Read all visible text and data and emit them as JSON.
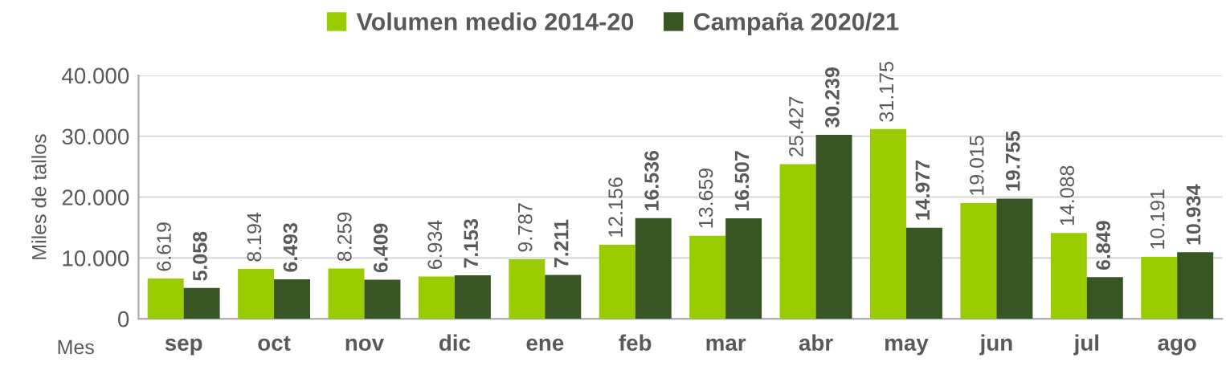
{
  "chart_data": {
    "type": "bar",
    "xlabel": "Mes",
    "ylabel": "Miles de tallos",
    "categories": [
      "sep",
      "oct",
      "nov",
      "dic",
      "ene",
      "feb",
      "mar",
      "abr",
      "may",
      "jun",
      "jul",
      "ago"
    ],
    "series": [
      {
        "name": "Volumen medio 2014-20",
        "color": "#99cc00",
        "values": [
          6619,
          8194,
          8259,
          6934,
          9787,
          12156,
          13659,
          25427,
          31175,
          19015,
          14088,
          10191
        ],
        "value_labels": [
          "6.619",
          "8.194",
          "8.259",
          "6.934",
          "9.787",
          "12.156",
          "13.659",
          "25.427",
          "31.175",
          "19.015",
          "14.088",
          "10.191"
        ]
      },
      {
        "name": "Campaña 2020/21",
        "color": "#375623",
        "values": [
          5058,
          6493,
          6409,
          7153,
          7211,
          16536,
          16507,
          30239,
          14977,
          19755,
          6849,
          10934
        ],
        "value_labels": [
          "5.058",
          "6.493",
          "6.409",
          "7.153",
          "7.211",
          "16.536",
          "16.507",
          "30.239",
          "14.977",
          "19.755",
          "6.849",
          "10.934"
        ]
      }
    ],
    "ylim": [
      0,
      40000
    ],
    "yticks": [
      {
        "value": 0,
        "label": "0"
      },
      {
        "value": 10000,
        "label": "10.000"
      },
      {
        "value": 20000,
        "label": "20.000"
      },
      {
        "value": 30000,
        "label": "30.000"
      },
      {
        "value": 40000,
        "label": "40.000"
      }
    ],
    "grid": "y",
    "legend": "top"
  }
}
